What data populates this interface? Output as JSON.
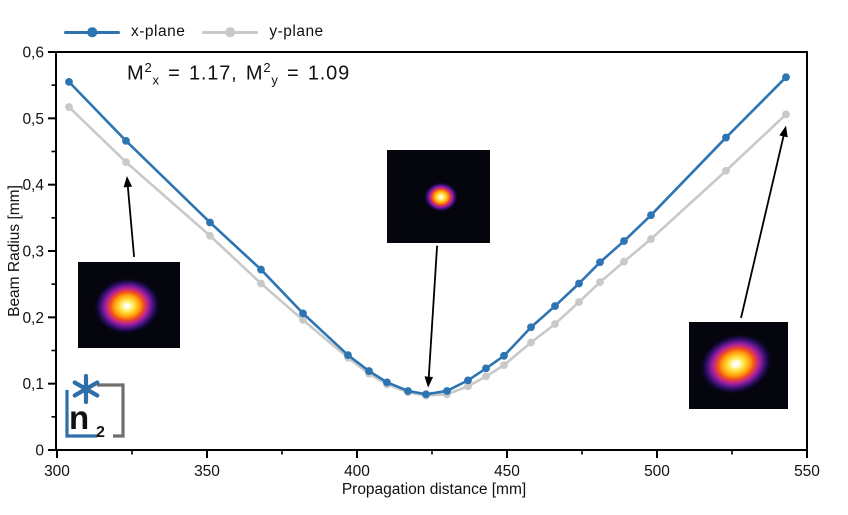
{
  "chart_data": {
    "type": "line",
    "title": "",
    "annotation_text": "M²x = 1.17, M²y = 1.09",
    "xlabel": "Propagation distance [mm]",
    "ylabel": "Beam Radius [mm]",
    "xlim": [
      300,
      550
    ],
    "ylim": [
      0,
      0.6
    ],
    "grid": false,
    "legend_position": "top-left",
    "axis_color": "#000000",
    "arrow_color": "#000000",
    "x_ticks_major": [
      300,
      350,
      400,
      450,
      500,
      550
    ],
    "x_tick_labels": [
      "300",
      "350",
      "400",
      "450",
      "500",
      "550"
    ],
    "x_ticks_minor": [
      325,
      375,
      425,
      475,
      525
    ],
    "y_ticks_major": [
      0,
      0.1,
      0.2,
      0.3,
      0.4,
      0.5,
      0.6
    ],
    "y_tick_labels": [
      "0",
      "0,1",
      "0,2",
      "0,3",
      "0,4",
      "0,5",
      "0,6"
    ],
    "y_ticks_minor": [
      0.05,
      0.15,
      0.25,
      0.35,
      0.45,
      0.55
    ],
    "x": [
      304,
      323,
      351,
      368,
      382,
      397,
      404,
      410,
      417,
      423,
      430,
      437,
      443,
      449,
      458,
      466,
      474,
      481,
      489,
      498,
      523,
      543
    ],
    "series": [
      {
        "name": "x-plane",
        "color": "#2d74b3",
        "values": [
          0.555,
          0.466,
          0.343,
          0.272,
          0.206,
          0.143,
          0.119,
          0.102,
          0.089,
          0.084,
          0.089,
          0.105,
          0.123,
          0.142,
          0.185,
          0.217,
          0.251,
          0.283,
          0.315,
          0.354,
          0.471,
          0.562
        ]
      },
      {
        "name": "y-plane",
        "color": "#c9c9c9",
        "values": [
          0.517,
          0.434,
          0.323,
          0.251,
          0.196,
          0.139,
          0.115,
          0.099,
          0.087,
          0.082,
          0.084,
          0.096,
          0.111,
          0.128,
          0.162,
          0.19,
          0.223,
          0.253,
          0.284,
          0.318,
          0.421,
          0.506
        ]
      }
    ],
    "arrows": [
      {
        "from_x": 325.7,
        "from_y": 0.291,
        "to_x": 323.3,
        "to_y": 0.413
      },
      {
        "from_x": 426.7,
        "from_y": 0.308,
        "to_x": 423.7,
        "to_y": 0.094
      },
      {
        "from_x": 528.0,
        "from_y": 0.199,
        "to_x": 543.0,
        "to_y": 0.489
      }
    ]
  },
  "legend": {
    "items": [
      {
        "label": "x-plane",
        "color": "#2d74b3"
      },
      {
        "label": "y-plane",
        "color": "#c9c9c9"
      }
    ]
  },
  "annotation": {
    "m1": "M",
    "sup1": "2",
    "sub1": "x",
    "mid": " = 1.17, ",
    "m2": "M",
    "sup2": "2",
    "sub2": "y",
    "end": " = 1.09"
  },
  "logo": {
    "letter": "n",
    "subscript": "2",
    "accent_color": "#2d6fa8",
    "bracket_gray": "#6f6f6f",
    "letter_color": "#4d525a"
  }
}
